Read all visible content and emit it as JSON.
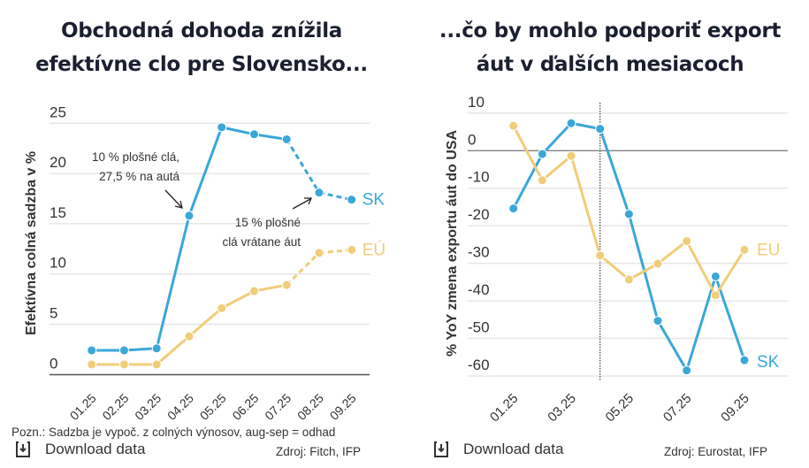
{
  "colors": {
    "sk": "#3aa7d9",
    "eu": "#f0cd78",
    "grid": "#e6e6e6",
    "axis": "#555555"
  },
  "chart_data": [
    {
      "type": "line",
      "title": "Obchodná dohoda znížila efektívne clo pre Slovensko...",
      "ylabel": "Efektívna colná sadzba v %",
      "xlabel": "",
      "categories": [
        "01.25",
        "02.25",
        "03.25",
        "04.25",
        "05.25",
        "06.25",
        "07.25",
        "08.25",
        "09.25"
      ],
      "ylim": [
        0,
        25
      ],
      "yticks": [
        0,
        5,
        10,
        15,
        20,
        25
      ],
      "grid": true,
      "dashed_from": "07.25",
      "series": [
        {
          "name": "SK",
          "color": "#3aa7d9",
          "values": [
            2.4,
            2.4,
            2.6,
            15.8,
            24.6,
            23.9,
            23.4,
            18.1,
            17.4
          ]
        },
        {
          "name": "EÚ",
          "color": "#f0cd78",
          "values": [
            1.0,
            1.0,
            1.0,
            3.8,
            6.6,
            8.3,
            8.9,
            12.1,
            12.4
          ]
        }
      ],
      "annotations": [
        {
          "lines": [
            "10 % plošné clá,",
            "27,5 % na autá"
          ],
          "target": "04.25"
        },
        {
          "lines": [
            "15 % plošné",
            "clá vrátane áut"
          ],
          "target": "08.25"
        }
      ],
      "note": "Pozn.: Sadzba je vypoč. z colných výnosov, aug-sep = odhad",
      "download": "Download data",
      "source": "Zdroj: Fitch, IFP"
    },
    {
      "type": "line",
      "title": "...čo by mohlo podporiť export áut v ďalších mesiacoch",
      "ylabel": "% YoY zmena exportu áut do USA",
      "xlabel": "",
      "categories": [
        "01.25",
        "02.25",
        "03.25",
        "04.25",
        "05.25",
        "06.25",
        "07.25",
        "08.25",
        "09.25"
      ],
      "xtick_labels": [
        "01.25",
        "03.25",
        "05.25",
        "07.25",
        "09.25"
      ],
      "ylim": [
        -60,
        10
      ],
      "yticks": [
        10,
        0,
        -10,
        -20,
        -30,
        -40,
        -50,
        -60
      ],
      "grid": true,
      "vertical_marker": "04.25",
      "series": [
        {
          "name": "SK",
          "color": "#3aa7d9",
          "values": [
            -15.4,
            -0.9,
            7.3,
            5.8,
            -16.9,
            -45.3,
            -58.5,
            -33.5,
            -55.8
          ]
        },
        {
          "name": "EU",
          "color": "#f0cd78",
          "values": [
            6.6,
            -7.9,
            -1.4,
            -27.9,
            -34.3,
            -30.1,
            -24.1,
            -38.5,
            -26.4
          ]
        }
      ],
      "download": "Download data",
      "source": "Zdroj: Eurostat, IFP"
    }
  ]
}
